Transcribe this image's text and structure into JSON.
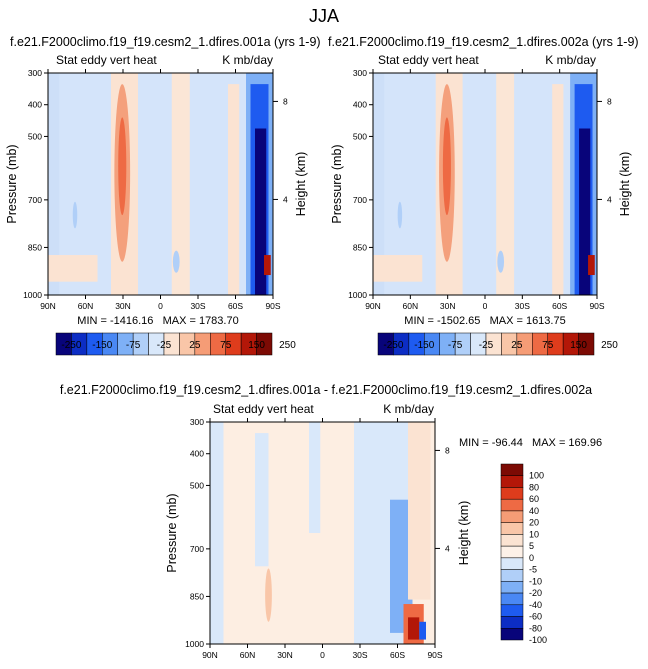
{
  "figure_title": "JJA",
  "panels": [
    {
      "title": "f.e21.F2000climo.f19_f19.cesm2_1.dfires.001a (yrs 1-9)",
      "left_label": "Stat eddy vert heat",
      "right_label": "K mb/day",
      "stats": "MIN = -1416.16   MAX = 1783.70"
    },
    {
      "title": "f.e21.F2000climo.f19_f19.cesm2_1.dfires.002a (yrs 1-9)",
      "left_label": "Stat eddy vert heat",
      "right_label": "K mb/day",
      "stats": "MIN = -1502.65   MAX = 1613.75"
    },
    {
      "title": "f.e21.F2000climo.f19_f19.cesm2_1.dfires.001a - f.e21.F2000climo.f19_f19.cesm2_1.dfires.002a",
      "left_label": "Stat eddy vert heat",
      "right_label": "K mb/day",
      "stats": "MIN = -96.44   MAX = 169.96"
    }
  ],
  "colorbar_top": {
    "labels": [
      "-250",
      "-150",
      "-75",
      "-25",
      "25",
      "75",
      "150",
      "250"
    ],
    "colors": [
      "#08047a",
      "#0c2dc4",
      "#1e5bf0",
      "#4a88f4",
      "#7eb0f6",
      "#b0cff8",
      "#d9e8fa",
      "#fbe3d2",
      "#f9c6a8",
      "#f59c76",
      "#ee6a44",
      "#de3c1c",
      "#b31708",
      "#7c0a04"
    ]
  },
  "colorbar_diff": {
    "labels": [
      "100",
      "80",
      "60",
      "40",
      "20",
      "10",
      "5",
      "0",
      "-5",
      "-10",
      "-20",
      "-40",
      "-60",
      "-80",
      "-100"
    ],
    "colors": [
      "#7c0a04",
      "#b31708",
      "#de3c1c",
      "#ee6a44",
      "#f59c76",
      "#f9c6a8",
      "#fbe3d2",
      "#fdf1e8",
      "#d9e8fa",
      "#b0cff8",
      "#7eb0f6",
      "#4a88f4",
      "#1e5bf0",
      "#0c2dc4",
      "#08047a"
    ]
  },
  "chart_data": [
    {
      "type": "heatmap",
      "title": "f.e21.F2000climo.f19_f19.cesm2_1.dfires.001a (yrs 1-9)",
      "ylabel": "Pressure (mb)",
      "y2label": "Height (km)",
      "x_ticks": [
        "90N",
        "60N",
        "30N",
        "0",
        "30S",
        "60S",
        "90S"
      ],
      "y_ticks": [
        "300",
        "400",
        "500",
        "700",
        "850",
        "1000"
      ],
      "y2_ticks": [
        "8",
        "4"
      ],
      "min": -1416.16,
      "max": 1783.7,
      "units": "K mb/day"
    },
    {
      "type": "heatmap",
      "title": "f.e21.F2000climo.f19_f19.cesm2_1.dfires.002a (yrs 1-9)",
      "ylabel": "Pressure (mb)",
      "y2label": "Height (km)",
      "x_ticks": [
        "90N",
        "60N",
        "30N",
        "0",
        "30S",
        "60S",
        "90S"
      ],
      "y_ticks": [
        "300",
        "400",
        "500",
        "700",
        "850",
        "1000"
      ],
      "y2_ticks": [
        "8",
        "4"
      ],
      "min": -1502.65,
      "max": 1613.75,
      "units": "K mb/day"
    },
    {
      "type": "heatmap",
      "title": "f.e21.F2000climo.f19_f19.cesm2_1.dfires.001a - f.e21.F2000climo.f19_f19.cesm2_1.dfires.002a",
      "ylabel": "Pressure (mb)",
      "y2label": "Height (km)",
      "x_ticks": [
        "90N",
        "60N",
        "30N",
        "0",
        "30S",
        "60S",
        "90S"
      ],
      "y_ticks": [
        "300",
        "400",
        "500",
        "700",
        "850",
        "1000"
      ],
      "y2_ticks": [
        "8",
        "4"
      ],
      "min": -96.44,
      "max": 169.96,
      "units": "K mb/day"
    }
  ]
}
